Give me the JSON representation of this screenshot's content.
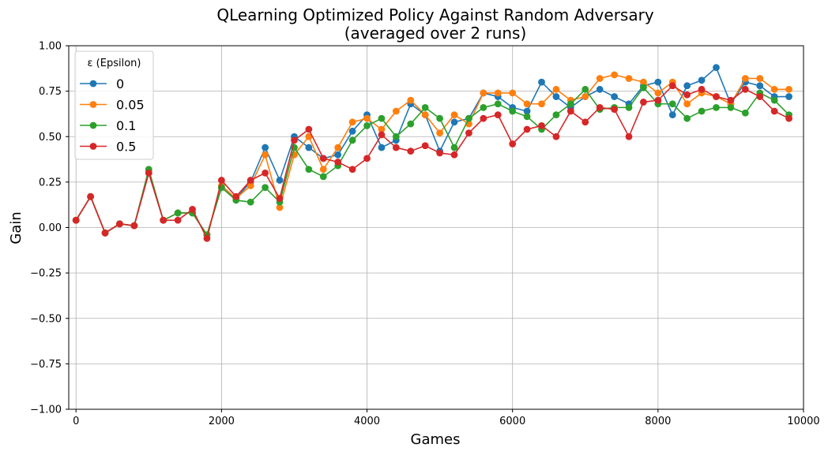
{
  "chart_data": {
    "type": "line",
    "title_line1": "QLearning Optimized Policy Against Random Adversary",
    "title_line2": "(averaged over 2 runs)",
    "xlabel": "Games",
    "ylabel": "Gain",
    "xlim": [
      -100,
      10000
    ],
    "ylim": [
      -1.0,
      1.0
    ],
    "xticks": [
      0,
      2000,
      4000,
      6000,
      8000,
      10000
    ],
    "yticks": [
      -1.0,
      -0.75,
      -0.5,
      -0.25,
      0.0,
      0.25,
      0.5,
      0.75,
      1.0
    ],
    "ytick_labels": [
      "−1.00",
      "−0.75",
      "−0.50",
      "−0.25",
      "0.00",
      "0.25",
      "0.50",
      "0.75",
      "1.00"
    ],
    "grid": true,
    "legend": {
      "title": "ε (Epsilon)",
      "position": "top-left"
    },
    "x": [
      0,
      200,
      400,
      600,
      800,
      1000,
      1200,
      1400,
      1600,
      1800,
      2000,
      2200,
      2400,
      2600,
      2800,
      3000,
      3200,
      3400,
      3600,
      3800,
      4000,
      4200,
      4400,
      4600,
      4800,
      5000,
      5200,
      5400,
      5600,
      5800,
      6000,
      6200,
      6400,
      6600,
      6800,
      7000,
      7200,
      7400,
      7600,
      7800,
      8000,
      8200,
      8400,
      8600,
      8800,
      9000,
      9200,
      9400,
      9600,
      9800
    ],
    "series": [
      {
        "name": "0",
        "color": "#1f77b4",
        "values": [
          0.04,
          0.17,
          -0.03,
          0.02,
          0.01,
          0.3,
          0.04,
          0.08,
          0.08,
          -0.04,
          0.22,
          0.16,
          0.25,
          0.44,
          0.26,
          0.5,
          0.44,
          0.38,
          0.4,
          0.53,
          0.62,
          0.44,
          0.48,
          0.68,
          0.62,
          0.42,
          0.58,
          0.6,
          0.74,
          0.72,
          0.66,
          0.64,
          0.8,
          0.72,
          0.66,
          0.72,
          0.76,
          0.72,
          0.68,
          0.78,
          0.8,
          0.62,
          0.78,
          0.81,
          0.88,
          0.68,
          0.8,
          0.78,
          0.72,
          0.72
        ]
      },
      {
        "name": "0.05",
        "color": "#ff7f0e",
        "values": [
          0.04,
          0.17,
          -0.03,
          0.02,
          0.01,
          0.31,
          0.04,
          0.08,
          0.08,
          -0.04,
          0.23,
          0.16,
          0.23,
          0.4,
          0.11,
          0.4,
          0.5,
          0.32,
          0.44,
          0.58,
          0.6,
          0.54,
          0.64,
          0.7,
          0.62,
          0.52,
          0.62,
          0.57,
          0.74,
          0.74,
          0.74,
          0.68,
          0.68,
          0.76,
          0.7,
          0.72,
          0.82,
          0.84,
          0.82,
          0.8,
          0.74,
          0.8,
          0.68,
          0.74,
          0.72,
          0.68,
          0.82,
          0.82,
          0.76,
          0.76
        ]
      },
      {
        "name": "0.1",
        "color": "#2ca02c",
        "values": [
          0.04,
          0.17,
          -0.03,
          0.02,
          0.01,
          0.32,
          0.04,
          0.08,
          0.08,
          -0.04,
          0.22,
          0.15,
          0.14,
          0.22,
          0.14,
          0.44,
          0.32,
          0.28,
          0.34,
          0.48,
          0.56,
          0.6,
          0.5,
          0.57,
          0.66,
          0.6,
          0.44,
          0.6,
          0.66,
          0.68,
          0.64,
          0.61,
          0.54,
          0.62,
          0.68,
          0.76,
          0.65,
          0.66,
          0.66,
          0.77,
          0.68,
          0.68,
          0.6,
          0.64,
          0.66,
          0.66,
          0.63,
          0.74,
          0.7,
          0.62
        ]
      },
      {
        "name": "0.5",
        "color": "#d62728",
        "values": [
          0.04,
          0.17,
          -0.03,
          0.02,
          0.01,
          0.3,
          0.04,
          0.04,
          0.1,
          -0.06,
          0.26,
          0.17,
          0.26,
          0.3,
          0.16,
          0.48,
          0.54,
          0.38,
          0.36,
          0.32,
          0.38,
          0.51,
          0.44,
          0.42,
          0.45,
          0.41,
          0.4,
          0.52,
          0.6,
          0.62,
          0.46,
          0.54,
          0.56,
          0.5,
          0.64,
          0.58,
          0.66,
          0.65,
          0.5,
          0.69,
          0.7,
          0.78,
          0.73,
          0.76,
          0.72,
          0.7,
          0.76,
          0.72,
          0.64,
          0.6
        ]
      }
    ]
  }
}
